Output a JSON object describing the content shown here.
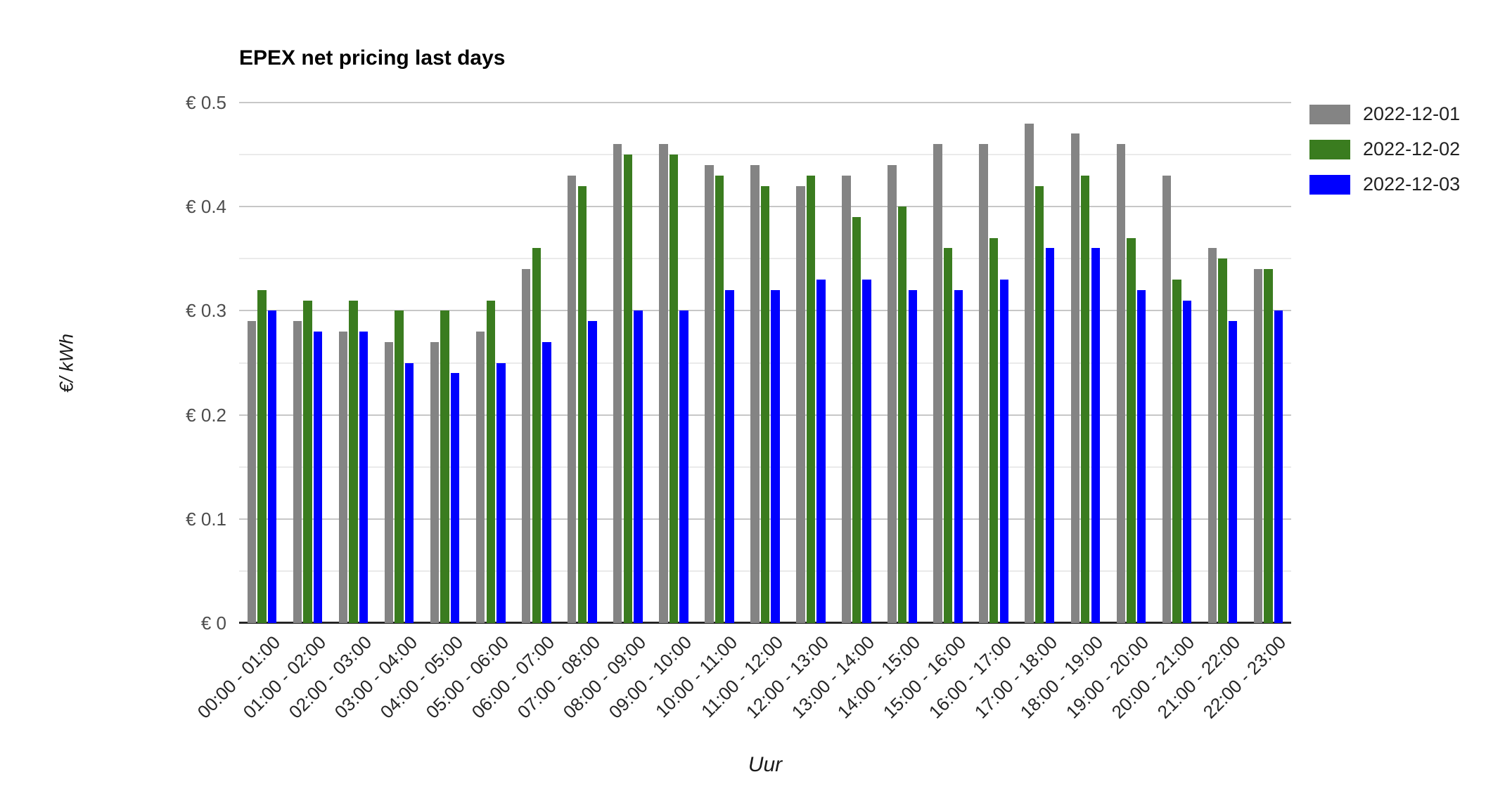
{
  "title": "EPEX net pricing last days",
  "axes": {
    "y_title": "€/ kWh",
    "x_title": "Uur",
    "y_tick_labels": [
      "€ 0",
      "€ 0.1",
      "€ 0.2",
      "€ 0.3",
      "€ 0.4",
      "€ 0.5"
    ]
  },
  "legend": {
    "items": [
      {
        "label": "2022-12-01",
        "color": "#848484"
      },
      {
        "label": "2022-12-02",
        "color": "#3A7C1F"
      },
      {
        "label": "2022-12-03",
        "color": "#0000FF"
      }
    ]
  },
  "style_colors": {
    "grid_major": "#c7c7c7",
    "grid_minor": "#eaeaea",
    "axis_line": "#262626",
    "series_gray": "#848484",
    "series_green": "#3A7C1F",
    "series_blue": "#0000FF"
  },
  "chart_data": {
    "type": "bar",
    "title": "EPEX net pricing last days",
    "xlabel": "Uur",
    "ylabel": "€/ kWh",
    "ylim": [
      0,
      0.5
    ],
    "grid": "on",
    "gridline_major_step": 0.1,
    "gridline_minor_step": 0.05,
    "legend_position": "top-right",
    "categories": [
      "00:00 - 01:00",
      "01:00 - 02:00",
      "02:00 - 03:00",
      "03:00 - 04:00",
      "04:00 - 05:00",
      "05:00 - 06:00",
      "06:00 - 07:00",
      "07:00 - 08:00",
      "08:00 - 09:00",
      "09:00 - 10:00",
      "10:00 - 11:00",
      "11:00 - 12:00",
      "12:00 - 13:00",
      "13:00 - 14:00",
      "14:00 - 15:00",
      "15:00 - 16:00",
      "16:00 - 17:00",
      "17:00 - 18:00",
      "18:00 - 19:00",
      "19:00 - 20:00",
      "20:00 - 21:00",
      "21:00 - 22:00",
      "22:00 - 23:00"
    ],
    "series": [
      {
        "name": "2022-12-01",
        "color": "#848484",
        "values": [
          0.29,
          0.29,
          0.28,
          0.27,
          0.27,
          0.28,
          0.34,
          0.43,
          0.46,
          0.46,
          0.44,
          0.44,
          0.42,
          0.43,
          0.44,
          0.46,
          0.46,
          0.48,
          0.47,
          0.46,
          0.43,
          0.36,
          0.34
        ]
      },
      {
        "name": "2022-12-02",
        "color": "#3A7C1F",
        "values": [
          0.32,
          0.31,
          0.31,
          0.3,
          0.3,
          0.31,
          0.36,
          0.42,
          0.45,
          0.45,
          0.43,
          0.42,
          0.43,
          0.39,
          0.4,
          0.36,
          0.37,
          0.42,
          0.43,
          0.37,
          0.33,
          0.35,
          0.34
        ]
      },
      {
        "name": "2022-12-03",
        "color": "#0000FF",
        "values": [
          0.3,
          0.28,
          0.28,
          0.25,
          0.24,
          0.25,
          0.27,
          0.29,
          0.3,
          0.3,
          0.32,
          0.32,
          0.33,
          0.33,
          0.32,
          0.32,
          0.33,
          0.36,
          0.36,
          0.32,
          0.31,
          0.29,
          0.3
        ]
      }
    ]
  }
}
